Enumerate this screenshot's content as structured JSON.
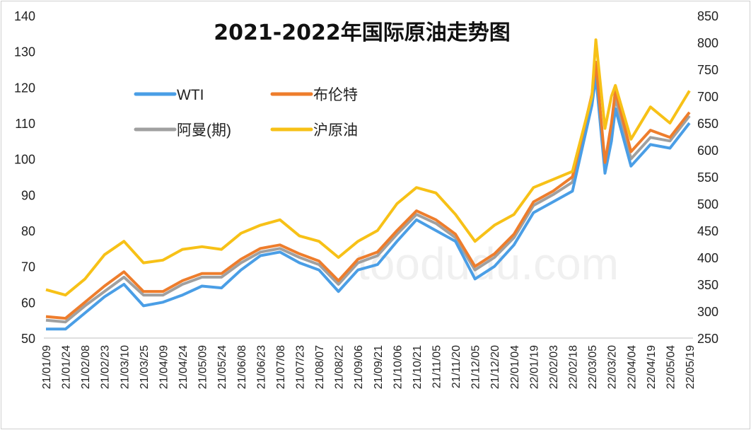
{
  "chart_data": {
    "type": "line",
    "title": "2021-2022年国际原油走势图",
    "watermark": "toodudu.com",
    "xlabel": "",
    "ylabel_left": "",
    "ylabel_right": "",
    "ylim_left": [
      50,
      140
    ],
    "yticks_left": [
      50,
      60,
      70,
      80,
      90,
      100,
      110,
      120,
      130,
      140
    ],
    "ylim_right": [
      250,
      850
    ],
    "yticks_right": [
      250,
      300,
      350,
      400,
      450,
      500,
      550,
      600,
      650,
      700,
      750,
      800,
      850
    ],
    "grid": false,
    "legend_placement": "top-left",
    "xticks": [
      "21/01/09",
      "21/01/24",
      "21/02/08",
      "21/02/23",
      "21/03/10",
      "21/03/25",
      "21/04/09",
      "21/04/24",
      "21/05/09",
      "21/05/24",
      "21/06/08",
      "21/06/23",
      "21/07/08",
      "21/07/23",
      "21/08/07",
      "21/08/22",
      "21/09/06",
      "21/09/21",
      "21/10/06",
      "21/10/21",
      "21/11/05",
      "21/11/20",
      "21/12/05",
      "21/12/20",
      "22/01/04",
      "22/01/19",
      "22/02/03",
      "22/02/18",
      "22/03/05",
      "22/03/20",
      "22/04/04",
      "22/04/19",
      "22/05/04",
      "22/05/19"
    ],
    "x": [
      "21/01/09",
      "21/01/24",
      "21/02/08",
      "21/02/23",
      "21/03/10",
      "21/03/25",
      "21/04/09",
      "21/04/24",
      "21/05/09",
      "21/05/24",
      "21/06/08",
      "21/06/23",
      "21/07/08",
      "21/07/23",
      "21/08/07",
      "21/08/22",
      "21/09/06",
      "21/09/21",
      "21/10/06",
      "21/10/21",
      "21/11/05",
      "21/11/20",
      "21/12/05",
      "21/12/20",
      "22/01/04",
      "22/01/19",
      "22/02/03",
      "22/02/18",
      "22/03/05",
      "22/03/08",
      "22/03/15",
      "22/03/20",
      "22/03/23",
      "22/04/04",
      "22/04/19",
      "22/05/04",
      "22/05/19"
    ],
    "series": [
      {
        "name": "WTI",
        "axis": "left",
        "color": "#4a9ee6",
        "values": [
          52.5,
          52.5,
          57,
          61.5,
          65,
          59,
          60,
          62,
          64.5,
          64,
          69,
          73,
          74,
          71,
          69,
          63,
          69,
          70.5,
          77,
          83,
          80,
          77,
          66.5,
          70,
          76,
          85,
          88,
          91,
          115,
          123,
          96,
          105,
          114,
          98,
          104,
          103,
          110
        ]
      },
      {
        "name": "布伦特",
        "axis": "left",
        "color": "#ee7d2c",
        "values": [
          56,
          55.5,
          60,
          64.5,
          68.5,
          63,
          63,
          66,
          68,
          68,
          72,
          75,
          76,
          73.5,
          71.5,
          66,
          72,
          74,
          80,
          85.5,
          83,
          79,
          70,
          73.5,
          79,
          88,
          91,
          95,
          118,
          127,
          99,
          110,
          119,
          102,
          108,
          106,
          113
        ]
      },
      {
        "name": "阿曼(期)",
        "axis": "left",
        "color": "#a0a0a0",
        "values": [
          55,
          54.5,
          59,
          63,
          67,
          62,
          62,
          65,
          67,
          67,
          71,
          74,
          75,
          72.5,
          70.5,
          65,
          71,
          73,
          79,
          84.5,
          82,
          78,
          69,
          72.5,
          78,
          87,
          90,
          93.5,
          117,
          125,
          98,
          108,
          117,
          100,
          106,
          105,
          112
        ]
      },
      {
        "name": "沪原油",
        "axis": "right",
        "color": "#f7c117",
        "values": [
          340,
          330,
          360,
          405,
          430,
          390,
          395,
          415,
          420,
          415,
          445,
          460,
          470,
          440,
          430,
          400,
          430,
          450,
          500,
          530,
          520,
          480,
          430,
          460,
          480,
          530,
          545,
          560,
          700,
          805,
          640,
          700,
          720,
          620,
          680,
          650,
          710
        ]
      }
    ]
  }
}
